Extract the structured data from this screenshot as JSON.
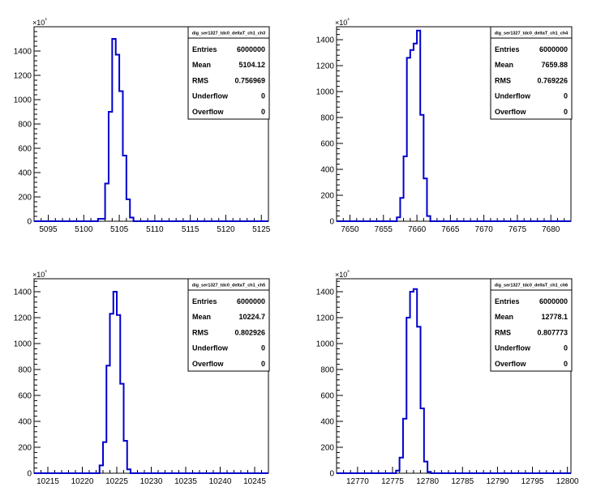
{
  "chart_data": [
    {
      "type": "histogram",
      "stats": {
        "title": "dig_ser1327_tdc0_deltaT_ch1_ch3",
        "entries": "6000000",
        "mean": "5104.12",
        "rms": "0.756969",
        "underflow": "0",
        "overflow": "0"
      },
      "y_multiplier_label": "×10³",
      "xlim": [
        5093,
        5126
      ],
      "ylim": [
        0,
        1600
      ],
      "x_ticks": [
        5095,
        5100,
        5105,
        5110,
        5115,
        5120,
        5125
      ],
      "y_ticks": [
        0,
        200,
        400,
        600,
        800,
        1000,
        1200,
        1400
      ],
      "bins": [
        [
          5102,
          5103,
          20
        ],
        [
          5103,
          5103.5,
          310
        ],
        [
          5103.5,
          5104,
          900
        ],
        [
          5104,
          5104.5,
          1500
        ],
        [
          5104.5,
          5105,
          1370
        ],
        [
          5105,
          5105.5,
          1070
        ],
        [
          5105.5,
          5106,
          540
        ],
        [
          5106,
          5106.5,
          180
        ],
        [
          5106.5,
          5107,
          30
        ]
      ]
    },
    {
      "type": "histogram",
      "stats": {
        "title": "dig_ser1327_tdc0_deltaT_ch1_ch4",
        "entries": "6000000",
        "mean": "7659.88",
        "rms": "0.769226",
        "underflow": "0",
        "overflow": "0"
      },
      "y_multiplier_label": "×10³",
      "xlim": [
        7648,
        7683
      ],
      "ylim": [
        0,
        1500
      ],
      "x_ticks": [
        7650,
        7655,
        7660,
        7665,
        7670,
        7675,
        7680
      ],
      "y_ticks": [
        0,
        200,
        400,
        600,
        800,
        1000,
        1200,
        1400
      ],
      "bins": [
        [
          7657,
          7657.5,
          30
        ],
        [
          7657.5,
          7658,
          180
        ],
        [
          7658,
          7658.5,
          500
        ],
        [
          7658.5,
          7659,
          1260
        ],
        [
          7659,
          7659.5,
          1320
        ],
        [
          7659.5,
          7660,
          1370
        ],
        [
          7660,
          7660.5,
          1470
        ],
        [
          7660.5,
          7661,
          820
        ],
        [
          7661,
          7661.5,
          330
        ],
        [
          7661.5,
          7662,
          40
        ]
      ]
    },
    {
      "type": "histogram",
      "stats": {
        "title": "dig_ser1327_tdc0_deltaT_ch1_ch5",
        "entries": "6000000",
        "mean": "10224.7",
        "rms": "0.802926",
        "underflow": "0",
        "overflow": "0"
      },
      "y_multiplier_label": "×10³",
      "xlim": [
        10213,
        10247
      ],
      "ylim": [
        0,
        1500
      ],
      "x_ticks": [
        10215,
        10220,
        10225,
        10230,
        10235,
        10240,
        10245
      ],
      "y_ticks": [
        0,
        200,
        400,
        600,
        800,
        1000,
        1200,
        1400
      ],
      "bins": [
        [
          10222.5,
          10223,
          60
        ],
        [
          10223,
          10223.5,
          240
        ],
        [
          10223.5,
          10224,
          830
        ],
        [
          10224,
          10224.5,
          1230
        ],
        [
          10224.5,
          10225,
          1400
        ],
        [
          10225,
          10225.5,
          1220
        ],
        [
          10225.5,
          10226,
          690
        ],
        [
          10226,
          10226.5,
          250
        ],
        [
          10226.5,
          10227,
          30
        ]
      ]
    },
    {
      "type": "histogram",
      "stats": {
        "title": "dig_ser1327_tdc0_deltaT_ch1_ch6",
        "entries": "6000000",
        "mean": "12778.1",
        "rms": "0.807773",
        "underflow": "0",
        "overflow": "0"
      },
      "y_multiplier_label": "×10³",
      "xlim": [
        12767,
        12800.5
      ],
      "ylim": [
        0,
        1500
      ],
      "x_ticks": [
        12770,
        12775,
        12780,
        12785,
        12790,
        12795,
        12800
      ],
      "y_ticks": [
        0,
        200,
        400,
        600,
        800,
        1000,
        1200,
        1400
      ],
      "bins": [
        [
          12775.5,
          12776,
          20
        ],
        [
          12776,
          12776.5,
          120
        ],
        [
          12776.5,
          12777,
          420
        ],
        [
          12777,
          12777.5,
          1200
        ],
        [
          12777.5,
          12778,
          1400
        ],
        [
          12778,
          12778.5,
          1420
        ],
        [
          12778.5,
          12779,
          1130
        ],
        [
          12779,
          12779.5,
          500
        ],
        [
          12779.5,
          12780,
          90
        ],
        [
          12780,
          12780.5,
          10
        ]
      ]
    }
  ],
  "colors": {
    "histogram_line": "#0000cc",
    "axis": "#000000",
    "background": "#ffffff"
  }
}
